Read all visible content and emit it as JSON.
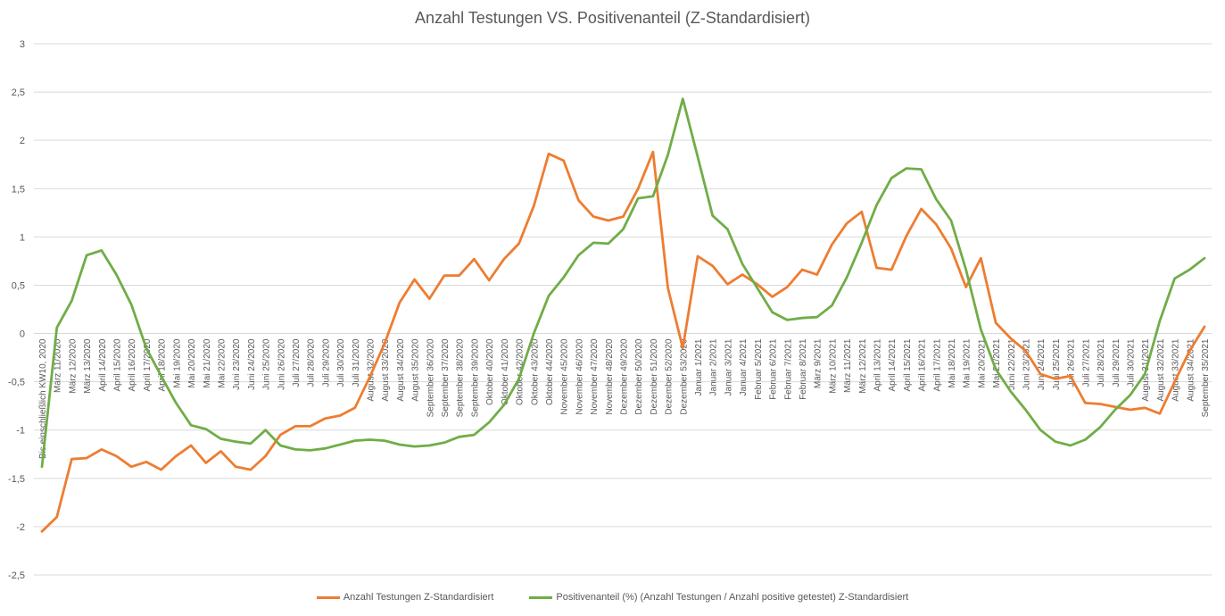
{
  "chart_data": {
    "type": "line",
    "title": "Anzahl Testungen VS. Positivenanteil (Z-Standardisiert)",
    "ylim": [
      -2.5,
      3
    ],
    "yticks": [
      "3",
      "2,5",
      "2",
      "1,5",
      "1",
      "0,5",
      "0",
      "-0,5",
      "-1",
      "-1,5",
      "-2",
      "-2,5"
    ],
    "ytick_values": [
      3,
      2.5,
      2,
      1.5,
      1,
      0.5,
      0,
      -0.5,
      -1,
      -1.5,
      -2,
      -2.5
    ],
    "grid": true,
    "legend_position": "bottom",
    "categories": [
      "Bis einschließlich KW10, 2020",
      "März 11/2020",
      "März 12/2020",
      "März 13/2020",
      "April 14/2020",
      "April 15/2020",
      "April 16/2020",
      "April 17/2020",
      "April 18/2020",
      "Mai 19/2020",
      "Mai 20/2020",
      "Mai 21/2020",
      "Mai 22/2020",
      "Juni 23/2020",
      "Juni 24/2020",
      "Juni 25/2020",
      "Juni 26/2020",
      "Juli 27/2020",
      "Juli 28/2020",
      "Juli 29/2020",
      "Juli 30/2020",
      "Juli 31/2020",
      "August 32/2020",
      "August 33/2020",
      "August 34/2020",
      "August 35/2020",
      "September 36/2020",
      "September 37/2020",
      "September 38/2020",
      "September 39/2020",
      "Oktober 40/2020",
      "Oktober 41/2020",
      "Oktober 42/2020",
      "Oktober 43/2020",
      "Oktober 44/2020",
      "November 45/2020",
      "November 46/2020",
      "November 47/2020",
      "November 48/2020",
      "Dezember 49/2020",
      "Dezember 50/2020",
      "Dezember 51/2020",
      "Dezember 52/2020",
      "Dezember 53/2020",
      "Januar 1/2021",
      "Januar 2/2021",
      "Januar 3/2021",
      "Januar 4/2021",
      "Februar 5/2021",
      "Februar 6/2021",
      "Februar 7/2021",
      "Februar 8/2021",
      "März 9/2021",
      "März 10/2021",
      "März 11/2021",
      "März 12/2021",
      "April 13/2021",
      "April 14/2021",
      "April 15/2021",
      "April 16/2021",
      "April 17/2021",
      "Mai 18/2021",
      "Mai 19/2021",
      "Mai 20/2021",
      "Mai 21/2021",
      "Juni 22/2021",
      "Juni 23/2021",
      "Juni 24/2021",
      "Juni 25/2021",
      "Juli 26/2021",
      "Juli 27/2021",
      "Juli 28/2021",
      "Juli 29/2021",
      "Juli 30/2021",
      "August 31/2021",
      "August 32/2021",
      "August 33/2021",
      "August 34/2021",
      "September 35/2021"
    ],
    "series": [
      {
        "name": "Anzahl Testungen Z-Standardisiert",
        "color": "#ED7D31",
        "values": [
          -2.05,
          -1.9,
          -1.3,
          -1.29,
          -1.2,
          -1.27,
          -1.38,
          -1.33,
          -1.41,
          -1.27,
          -1.16,
          -1.34,
          -1.22,
          -1.38,
          -1.41,
          -1.27,
          -1.05,
          -0.96,
          -0.96,
          -0.88,
          -0.85,
          -0.77,
          -0.45,
          -0.1,
          0.32,
          0.56,
          0.36,
          0.6,
          0.6,
          0.77,
          0.55,
          0.77,
          0.93,
          1.32,
          1.86,
          1.79,
          1.38,
          1.21,
          1.17,
          1.21,
          1.5,
          1.88,
          0.47,
          -0.15,
          0.8,
          0.7,
          0.51,
          0.61,
          0.51,
          0.38,
          0.48,
          0.66,
          0.61,
          0.92,
          1.14,
          1.26,
          0.68,
          0.66,
          1.01,
          1.29,
          1.13,
          0.88,
          0.48,
          0.78,
          0.11,
          -0.05,
          -0.18,
          -0.42,
          -0.47,
          -0.44,
          -0.72,
          -0.73,
          -0.76,
          -0.79,
          -0.77,
          -0.83,
          -0.5,
          -0.18,
          0.07
        ]
      },
      {
        "name": "Positivenanteil (%) (Anzahl Testungen / Anzahl positive getestet) Z-Standardisiert",
        "color": "#70AD47",
        "values": [
          -1.38,
          0.06,
          0.34,
          0.81,
          0.86,
          0.61,
          0.3,
          -0.15,
          -0.44,
          -0.72,
          -0.95,
          -0.99,
          -1.09,
          -1.12,
          -1.14,
          -1.0,
          -1.16,
          -1.2,
          -1.21,
          -1.19,
          -1.15,
          -1.11,
          -1.1,
          -1.11,
          -1.15,
          -1.17,
          -1.16,
          -1.13,
          -1.07,
          -1.05,
          -0.92,
          -0.74,
          -0.47,
          0.0,
          0.39,
          0.58,
          0.81,
          0.94,
          0.93,
          1.08,
          1.4,
          1.42,
          1.85,
          2.43,
          1.83,
          1.22,
          1.08,
          0.72,
          0.47,
          0.22,
          0.14,
          0.16,
          0.17,
          0.29,
          0.58,
          0.94,
          1.33,
          1.61,
          1.71,
          1.7,
          1.39,
          1.17,
          0.66,
          0.04,
          -0.37,
          -0.6,
          -0.79,
          -1.0,
          -1.12,
          -1.16,
          -1.1,
          -0.97,
          -0.79,
          -0.64,
          -0.42,
          0.13,
          0.57,
          0.66,
          0.78
        ]
      }
    ]
  }
}
